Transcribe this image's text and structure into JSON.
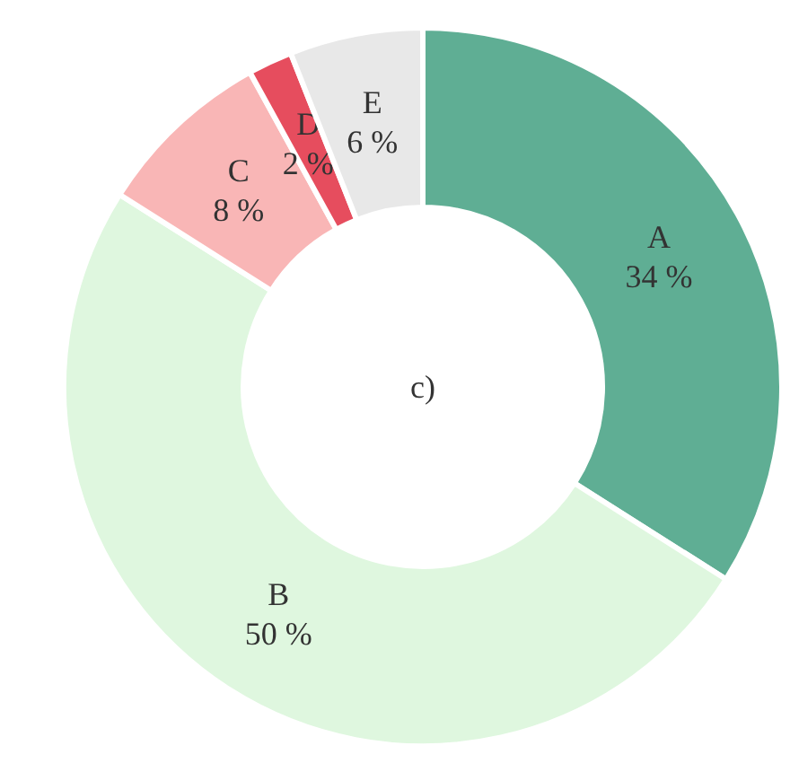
{
  "chart_data": {
    "type": "donut",
    "categories": [
      "A",
      "B",
      "C",
      "D",
      "E"
    ],
    "values": [
      34,
      50,
      8,
      2,
      6
    ],
    "colors": [
      "#5fae94",
      "#dff7df",
      "#f9b6b6",
      "#e64d5e",
      "#e8e8e8"
    ],
    "value_labels": [
      "34 %",
      "50 %",
      "8 %",
      "2 %",
      "6 %"
    ],
    "annotations": [
      "c)"
    ]
  }
}
